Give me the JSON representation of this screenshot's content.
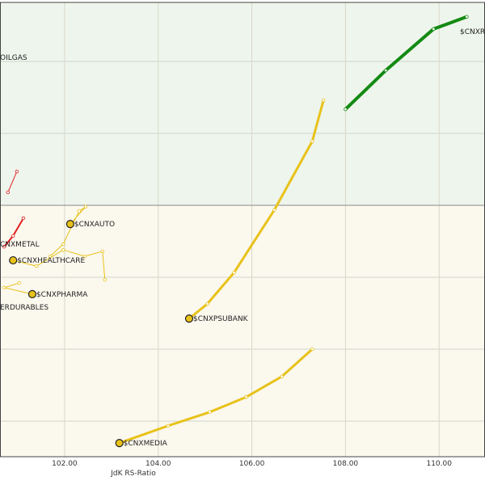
{
  "chart_data": {
    "type": "line",
    "x_label": "JdK RS-Ratio",
    "xlim": [
      100.62,
      110.98
    ],
    "ylim": [
      93.01,
      105.64
    ],
    "xticks": [
      {
        "value": 102,
        "label": "102.00"
      },
      {
        "value": 104,
        "label": "104.00"
      },
      {
        "value": 106,
        "label": "106.00"
      },
      {
        "value": 108,
        "label": "108.00"
      },
      {
        "value": 110,
        "label": "110.00"
      }
    ],
    "yticks": [
      94,
      96,
      98,
      100,
      102,
      104
    ],
    "grid": true,
    "series": [
      {
        "name": "$CNXR",
        "color": "#138a13",
        "line_width": 4,
        "x": [
          108.0,
          108.86,
          109.88,
          110.59
        ],
        "y": [
          102.67,
          103.75,
          104.9,
          105.24
        ]
      },
      {
        "name": "$CNXMEDIA",
        "color": "#e8c21a",
        "line_width": 3,
        "x": [
          107.29,
          106.64,
          105.88,
          105.1,
          104.21,
          103.17
        ],
        "y": [
          96.0,
          95.24,
          94.67,
          94.25,
          93.87,
          93.39
        ]
      },
      {
        "name": "$CNXPSUBANK",
        "color": "#e8c21a",
        "line_width": 3,
        "x": [
          107.53,
          107.29,
          106.48,
          105.62,
          105.05,
          104.66
        ],
        "y": [
          102.92,
          101.78,
          99.87,
          98.13,
          97.26,
          96.85
        ]
      },
      {
        "name": "$CNXAUTO",
        "color": "#e8c21a",
        "line_width": 1,
        "x": [
          101.69,
          101.97,
          102.31,
          102.45,
          102.12
        ],
        "y": [
          98.58,
          98.92,
          99.84,
          99.96,
          99.48
        ]
      },
      {
        "name": "$CNXHEALTHCARE",
        "color": "#e8c21a",
        "line_width": 1,
        "x": [
          102.86,
          102.81,
          102.43,
          101.97,
          101.4,
          100.9
        ],
        "y": [
          97.93,
          98.72,
          98.58,
          98.76,
          98.31,
          98.47
        ]
      },
      {
        "name": "$CNXPHARMA",
        "color": "#e8c21a",
        "line_width": 1,
        "x": [
          101.03,
          100.71,
          101.31
        ],
        "y": [
          97.84,
          97.71,
          97.53
        ]
      },
      {
        "name": "CNXMETAL",
        "color": "#e02020",
        "line_width": 2,
        "x": [
          101.12,
          100.9,
          100.71
        ],
        "y": [
          99.64,
          99.15,
          98.85
        ]
      },
      {
        "name": "OILGAS",
        "color": "#e02020",
        "line_width": 1,
        "x": [
          100.98,
          100.79
        ],
        "y": [
          100.94,
          100.36
        ]
      },
      {
        "name": "ERDURABLES",
        "color": "#e8c21a",
        "line_width": 1,
        "x": [],
        "y": []
      }
    ]
  }
}
